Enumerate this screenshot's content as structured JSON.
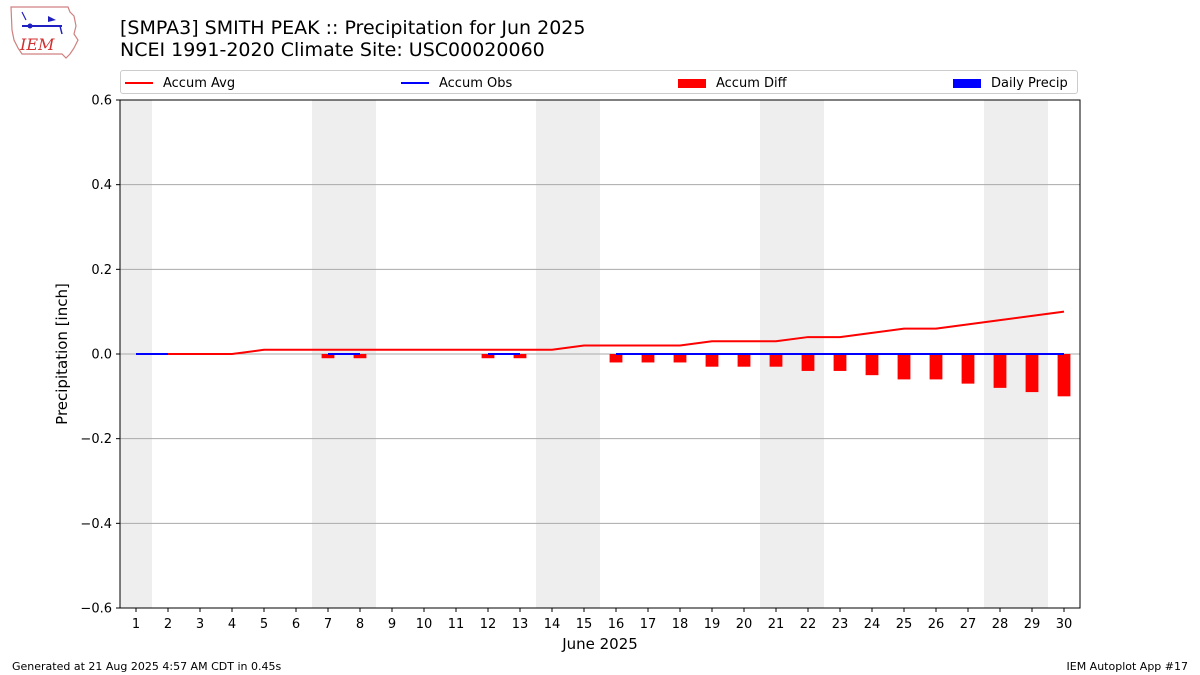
{
  "header": {
    "title_line1": "[SMPA3] SMITH PEAK :: Precipitation for Jun 2025",
    "title_line2": "NCEI 1991-2020 Climate Site: USC00020060",
    "logo_text": "IEM"
  },
  "legend": {
    "accum_avg": "Accum Avg",
    "accum_obs": "Accum Obs",
    "accum_diff": "Accum Diff",
    "daily_precip": "Daily Precip"
  },
  "footer": {
    "generated": "Generated at 21 Aug 2025 4:57 AM CDT in 0.45s",
    "app": "IEM Autoplot App #17"
  },
  "colors": {
    "avg": "#ff0000",
    "obs": "#0000ff",
    "diff": "#ff0000",
    "daily": "#0000ff",
    "weekend_shade": "#eeeeee",
    "grid": "#aaaaaa"
  },
  "chart_data": {
    "type": "bar",
    "xlabel": "June 2025",
    "ylabel": "Precipitation [inch]",
    "xlim": [
      0.5,
      30.5
    ],
    "ylim": [
      -0.6,
      0.6
    ],
    "yticks": [
      -0.6,
      -0.4,
      -0.2,
      0.0,
      0.2,
      0.4,
      0.6
    ],
    "ytick_labels": [
      "−0.6",
      "−0.4",
      "−0.2",
      "0.0",
      "0.2",
      "0.4",
      "0.6"
    ],
    "days": [
      1,
      2,
      3,
      4,
      5,
      6,
      7,
      8,
      9,
      10,
      11,
      12,
      13,
      14,
      15,
      16,
      17,
      18,
      19,
      20,
      21,
      22,
      23,
      24,
      25,
      26,
      27,
      28,
      29,
      30
    ],
    "weekend_days": [
      1,
      7,
      8,
      14,
      15,
      21,
      22,
      28,
      29
    ],
    "grid": "y-major",
    "legend_position": "top",
    "series": [
      {
        "name": "Accum Avg",
        "kind": "line",
        "values": [
          0,
          0,
          0,
          0,
          0.01,
          0.01,
          0.01,
          0.01,
          0.01,
          0.01,
          0.01,
          0.01,
          0.01,
          0.01,
          0.02,
          0.02,
          0.02,
          0.02,
          0.03,
          0.03,
          0.03,
          0.04,
          0.04,
          0.05,
          0.06,
          0.06,
          0.07,
          0.08,
          0.09,
          0.1
        ]
      },
      {
        "name": "Accum Obs",
        "kind": "line",
        "days": [
          1,
          2,
          7,
          8,
          12,
          13,
          16,
          17,
          18,
          19,
          20,
          21,
          22,
          23,
          24,
          25,
          26,
          27,
          28,
          29,
          30
        ],
        "values": [
          0,
          0,
          0,
          0,
          0,
          0,
          0,
          0,
          0,
          0,
          0,
          0,
          0,
          0,
          0,
          0,
          0,
          0,
          0,
          0,
          0
        ]
      },
      {
        "name": "Accum Diff",
        "kind": "bar",
        "days": [
          7,
          8,
          12,
          13,
          16,
          17,
          18,
          19,
          20,
          21,
          22,
          23,
          24,
          25,
          26,
          27,
          28,
          29,
          30
        ],
        "values": [
          -0.01,
          -0.01,
          -0.01,
          -0.01,
          -0.02,
          -0.02,
          -0.02,
          -0.03,
          -0.03,
          -0.03,
          -0.04,
          -0.04,
          -0.05,
          -0.06,
          -0.06,
          -0.07,
          -0.08,
          -0.09,
          -0.1
        ]
      },
      {
        "name": "Daily Precip",
        "kind": "bar",
        "values": [
          0,
          0,
          0,
          0,
          0,
          0,
          0,
          0,
          0,
          0,
          0,
          0,
          0,
          0,
          0,
          0,
          0,
          0,
          0,
          0,
          0,
          0,
          0,
          0,
          0,
          0,
          0,
          0,
          0,
          0
        ]
      }
    ]
  }
}
